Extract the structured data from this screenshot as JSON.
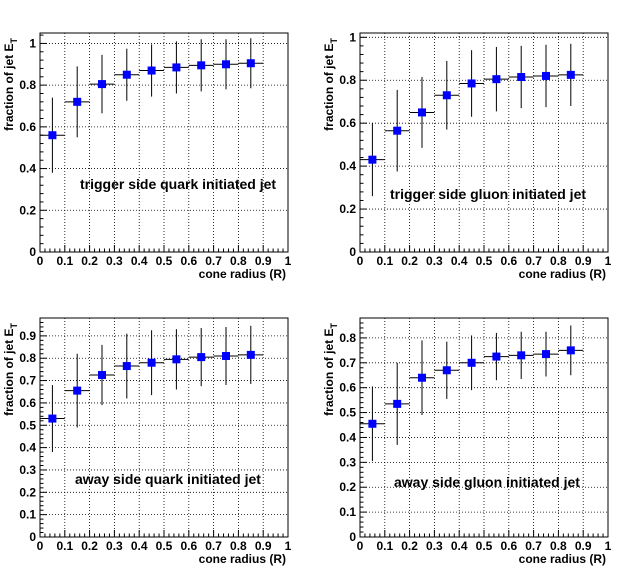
{
  "colors": {
    "marker": "#0000ff",
    "axis": "#000000",
    "grid": "#000000",
    "background": "#ffffff"
  },
  "chart_data": [
    {
      "type": "scatter",
      "xlabel": "cone radius (R)",
      "ylabel": "fraction of jet E",
      "ylabel_sub": "T",
      "annotation": "trigger side quark initiated jet",
      "xlim": [
        0,
        1
      ],
      "ylim": [
        0,
        1.05
      ],
      "xticks": [
        "0",
        "0.1",
        "0.2",
        "0.3",
        "0.4",
        "0.5",
        "0.6",
        "0.7",
        "0.8",
        "0.9",
        "1"
      ],
      "yticks": [
        "0",
        "0.2",
        "0.4",
        "0.6",
        "0.8",
        "1"
      ],
      "grid": true,
      "x": [
        0.05,
        0.15,
        0.25,
        0.35,
        0.45,
        0.55,
        0.65,
        0.75,
        0.85
      ],
      "y": [
        0.56,
        0.72,
        0.805,
        0.85,
        0.87,
        0.885,
        0.895,
        0.9,
        0.905
      ],
      "err": [
        0.18,
        0.17,
        0.14,
        0.125,
        0.125,
        0.125,
        0.125,
        0.12,
        0.12
      ]
    },
    {
      "type": "scatter",
      "xlabel": "cone radius (R)",
      "ylabel": "fraction of jet E",
      "ylabel_sub": "T",
      "annotation": "trigger side gluon initiated jet",
      "xlim": [
        0,
        1
      ],
      "ylim": [
        0,
        1.02
      ],
      "xticks": [
        "0",
        "0.1",
        "0.2",
        "0.3",
        "0.4",
        "0.5",
        "0.6",
        "0.7",
        "0.8",
        "0.9",
        "1"
      ],
      "yticks": [
        "0",
        "0.2",
        "0.4",
        "0.6",
        "0.8",
        "1"
      ],
      "grid": true,
      "x": [
        0.05,
        0.15,
        0.25,
        0.35,
        0.45,
        0.55,
        0.65,
        0.75,
        0.85
      ],
      "y": [
        0.43,
        0.565,
        0.65,
        0.73,
        0.785,
        0.805,
        0.815,
        0.82,
        0.825
      ],
      "err": [
        0.17,
        0.19,
        0.165,
        0.16,
        0.155,
        0.15,
        0.145,
        0.145,
        0.145
      ]
    },
    {
      "type": "scatter",
      "xlabel": "cone radius (R)",
      "ylabel": "fraction of jet E",
      "ylabel_sub": "T",
      "annotation": "away side quark initiated jet",
      "xlim": [
        0,
        1
      ],
      "ylim": [
        0,
        0.98
      ],
      "xticks": [
        "0",
        "0.1",
        "0.2",
        "0.3",
        "0.4",
        "0.5",
        "0.6",
        "0.7",
        "0.8",
        "0.9",
        "1"
      ],
      "yticks": [
        "0",
        "0.1",
        "0.2",
        "0.3",
        "0.4",
        "0.5",
        "0.6",
        "0.7",
        "0.8",
        "0.9"
      ],
      "grid": true,
      "x": [
        0.05,
        0.15,
        0.25,
        0.35,
        0.45,
        0.55,
        0.65,
        0.75,
        0.85
      ],
      "y": [
        0.53,
        0.655,
        0.725,
        0.765,
        0.78,
        0.795,
        0.805,
        0.81,
        0.815
      ],
      "err": [
        0.15,
        0.165,
        0.135,
        0.145,
        0.145,
        0.135,
        0.13,
        0.13,
        0.13
      ]
    },
    {
      "type": "scatter",
      "xlabel": "cone radius (R)",
      "ylabel": "fraction of jet E",
      "ylabel_sub": "T",
      "annotation": "away side gluon initiated jet",
      "xlim": [
        0,
        1
      ],
      "ylim": [
        0,
        0.88
      ],
      "xticks": [
        "0",
        "0.1",
        "0.2",
        "0.3",
        "0.4",
        "0.5",
        "0.6",
        "0.7",
        "0.8",
        "0.9",
        "1"
      ],
      "yticks": [
        "0",
        "0.1",
        "0.2",
        "0.3",
        "0.4",
        "0.5",
        "0.6",
        "0.7",
        "0.8"
      ],
      "grid": true,
      "x": [
        0.05,
        0.15,
        0.25,
        0.35,
        0.45,
        0.55,
        0.65,
        0.75,
        0.85
      ],
      "y": [
        0.455,
        0.535,
        0.64,
        0.67,
        0.7,
        0.725,
        0.73,
        0.735,
        0.75
      ],
      "err": [
        0.15,
        0.165,
        0.15,
        0.115,
        0.11,
        0.095,
        0.095,
        0.09,
        0.1
      ]
    }
  ]
}
